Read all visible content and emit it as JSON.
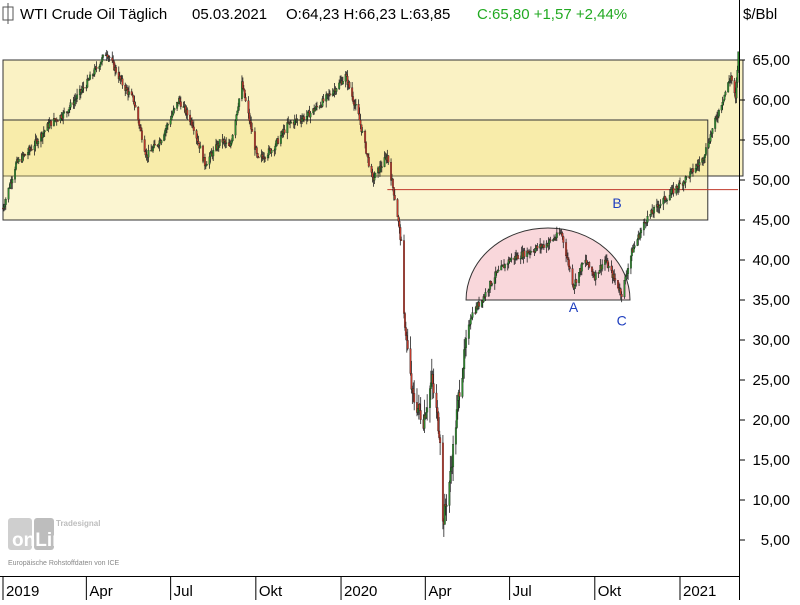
{
  "header": {
    "instrument": "WTI Crude Oil Täglich",
    "date": "05.03.2021",
    "ohl": "O:64,23 H:66,23 L:63,85",
    "change": "C:65,80 +1,57 +2,44%"
  },
  "axis_unit": "$/Bbl",
  "logo": {
    "brand_top": "Tradesignal",
    "brand": "onLine",
    "footnote": "Europäische Rohstoffdaten von ICE"
  },
  "colors": {
    "up": "#2f8a2f",
    "down": "#c0392b",
    "zone": "#f4e27c",
    "dome": "#f7c9cf",
    "hline": "#c0392b",
    "annot": "#1f3fbf",
    "change": "#22aa22"
  },
  "chart_data": {
    "type": "candlestick",
    "title": "WTI Crude Oil Täglich",
    "y_unit": "$/Bbl",
    "ylim": [
      0,
      68
    ],
    "y_ticks": [
      "5,00",
      "10,00",
      "15,00",
      "20,00",
      "25,00",
      "30,00",
      "35,00",
      "40,00",
      "45,00",
      "50,00",
      "55,00",
      "60,00",
      "65,00"
    ],
    "y_tick_values": [
      5,
      10,
      15,
      20,
      25,
      30,
      35,
      40,
      45,
      50,
      55,
      60,
      65
    ],
    "x_ticks": [
      "2019",
      "Apr",
      "Jul",
      "Okt",
      "2020",
      "Apr",
      "Jul",
      "Okt",
      "2021"
    ],
    "x_tick_dates": [
      "2019-01-01",
      "2019-04-01",
      "2019-07-01",
      "2019-10-01",
      "2020-01-01",
      "2020-04-01",
      "2020-07-01",
      "2020-10-01",
      "2021-01-01"
    ],
    "last_bar": {
      "date": "2021-03-05",
      "open": 64.23,
      "high": 66.23,
      "low": 63.85,
      "close": 65.8
    },
    "price_path": [
      [
        "2019-01-01",
        46.5
      ],
      [
        "2019-01-15",
        52
      ],
      [
        "2019-02-01",
        54
      ],
      [
        "2019-02-20",
        57
      ],
      [
        "2019-03-10",
        58.5
      ],
      [
        "2019-04-01",
        62
      ],
      [
        "2019-04-23",
        66
      ],
      [
        "2019-05-10",
        62
      ],
      [
        "2019-05-22",
        60
      ],
      [
        "2019-06-05",
        53
      ],
      [
        "2019-06-20",
        55
      ],
      [
        "2019-07-10",
        60
      ],
      [
        "2019-07-25",
        57
      ],
      [
        "2019-08-07",
        52
      ],
      [
        "2019-08-25",
        55
      ],
      [
        "2019-09-03",
        54
      ],
      [
        "2019-09-16",
        62
      ],
      [
        "2019-09-25",
        57
      ],
      [
        "2019-10-03",
        52.5
      ],
      [
        "2019-10-20",
        54
      ],
      [
        "2019-11-05",
        57
      ],
      [
        "2019-11-25",
        58
      ],
      [
        "2019-12-10",
        59.5
      ],
      [
        "2019-12-30",
        62
      ],
      [
        "2020-01-06",
        63
      ],
      [
        "2020-01-20",
        58
      ],
      [
        "2020-02-04",
        50
      ],
      [
        "2020-02-20",
        53
      ],
      [
        "2020-03-01",
        46.5
      ],
      [
        "2020-03-06",
        42
      ],
      [
        "2020-03-09",
        33
      ],
      [
        "2020-03-18",
        23
      ],
      [
        "2020-03-30",
        20
      ],
      [
        "2020-04-08",
        25
      ],
      [
        "2020-04-17",
        18
      ],
      [
        "2020-04-20",
        7
      ],
      [
        "2020-04-28",
        13
      ],
      [
        "2020-05-08",
        24
      ],
      [
        "2020-05-20",
        33
      ],
      [
        "2020-06-01",
        35
      ],
      [
        "2020-06-15",
        38
      ],
      [
        "2020-07-01",
        40
      ],
      [
        "2020-07-20",
        41
      ],
      [
        "2020-08-10",
        42
      ],
      [
        "2020-08-26",
        43.4
      ],
      [
        "2020-09-08",
        36.8
      ],
      [
        "2020-09-20",
        40
      ],
      [
        "2020-10-01",
        38
      ],
      [
        "2020-10-12",
        40
      ],
      [
        "2020-10-30",
        35.8
      ],
      [
        "2020-11-10",
        41
      ],
      [
        "2020-11-25",
        45
      ],
      [
        "2020-12-10",
        47
      ],
      [
        "2021-01-06",
        50
      ],
      [
        "2021-01-25",
        52.5
      ],
      [
        "2021-02-10",
        58
      ],
      [
        "2021-02-25",
        63
      ],
      [
        "2021-03-02",
        60
      ],
      [
        "2021-03-05",
        65.8
      ]
    ],
    "zones": [
      {
        "from": "2019-01-01",
        "to": "2021-03-10",
        "low": 50.5,
        "high": 65
      },
      {
        "from": "2019-01-01",
        "to": "2021-01-31",
        "low": 45,
        "high": 57.5
      }
    ],
    "horizontal_line": {
      "from": "2020-02-20",
      "value": 48.8
    },
    "dome": {
      "from": "2020-05-15",
      "to": "2020-11-08",
      "base": 35,
      "peak": 44
    },
    "annotations": [
      {
        "label": "A",
        "date": "2020-09-08",
        "value": 33.5
      },
      {
        "label": "B",
        "date": "2020-10-25",
        "value": 46.5
      },
      {
        "label": "C",
        "date": "2020-10-30",
        "value": 31.8
      }
    ]
  }
}
